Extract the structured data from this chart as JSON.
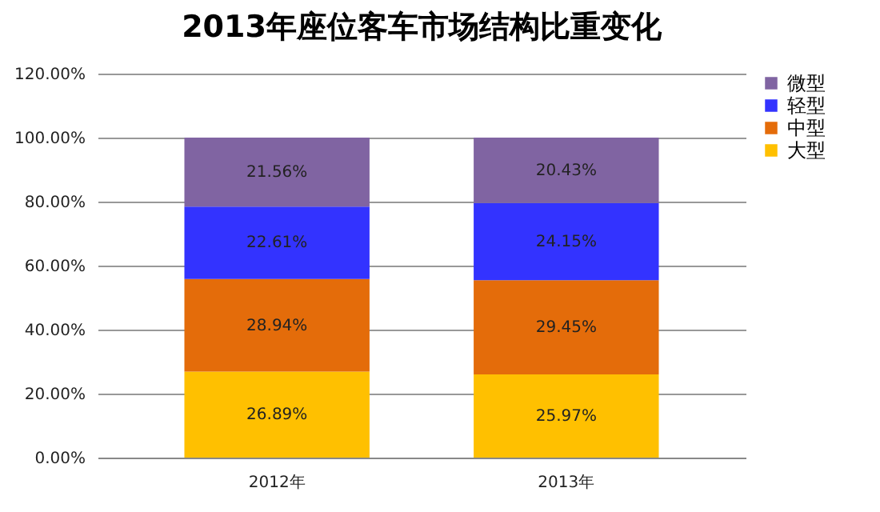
{
  "chart_data": {
    "type": "bar",
    "title": "2013年座位客车市场结构比重变化",
    "stacked": true,
    "categories": [
      "2012年",
      "2013年"
    ],
    "series": [
      {
        "name": "大型",
        "color": "#ffc000",
        "values": [
          26.89,
          25.97
        ],
        "value_labels": [
          "26.89%",
          "25.97%"
        ]
      },
      {
        "name": "中型",
        "color": "#e46c0a",
        "values": [
          28.94,
          29.45
        ],
        "value_labels": [
          "28.94%",
          "29.45%"
        ]
      },
      {
        "name": "轻型",
        "color": "#3333ff",
        "values": [
          22.61,
          24.15
        ],
        "value_labels": [
          "22.61%",
          "24.15%"
        ]
      },
      {
        "name": "微型",
        "color": "#8064a2",
        "values": [
          21.56,
          20.43
        ],
        "value_labels": [
          "21.56%",
          "20.43%"
        ]
      }
    ],
    "ylim": [
      0,
      120
    ],
    "yticks": [
      {
        "value": 0,
        "label": "0.00%"
      },
      {
        "value": 20,
        "label": "20.00%"
      },
      {
        "value": 40,
        "label": "40.00%"
      },
      {
        "value": 60,
        "label": "60.00%"
      },
      {
        "value": 80,
        "label": "80.00%"
      },
      {
        "value": 100,
        "label": "100.00%"
      },
      {
        "value": 120,
        "label": "120.00%"
      }
    ],
    "grid": "y",
    "legend": "right"
  }
}
